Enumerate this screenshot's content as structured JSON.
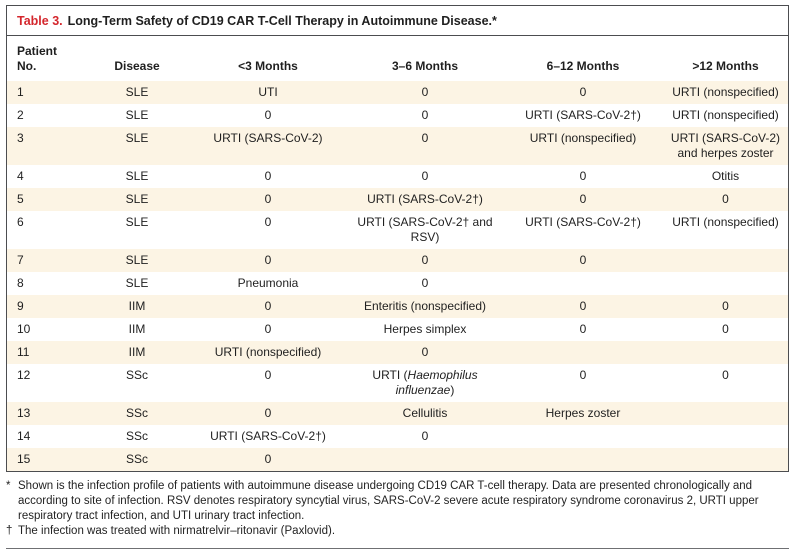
{
  "table": {
    "label": "Table 3.",
    "title": "Long-Term Safety of CD19 CAR T-Cell Therapy in Autoimmune Disease.*",
    "columns": [
      "Patient\nNo.",
      "Disease",
      "<3 Months",
      "3–6 Months",
      "6–12 Months",
      ">12 Months"
    ],
    "rows": [
      {
        "no": "1",
        "disease": "SLE",
        "m0_3": "UTI",
        "m3_6": "0",
        "m6_12": "0",
        "m12": "URTI (nonspecified)"
      },
      {
        "no": "2",
        "disease": "SLE",
        "m0_3": "0",
        "m3_6": "0",
        "m6_12": "URTI (SARS-CoV-2†)",
        "m12": "URTI (nonspecified)"
      },
      {
        "no": "3",
        "disease": "SLE",
        "m0_3": "URTI (SARS-CoV-2)",
        "m3_6": "0",
        "m6_12": "URTI (nonspecified)",
        "m12": "URTI (SARS-CoV-2) and herpes zoster"
      },
      {
        "no": "4",
        "disease": "SLE",
        "m0_3": "0",
        "m3_6": "0",
        "m6_12": "0",
        "m12": "Otitis"
      },
      {
        "no": "5",
        "disease": "SLE",
        "m0_3": "0",
        "m3_6": "URTI (SARS-CoV-2†)",
        "m6_12": "0",
        "m12": "0"
      },
      {
        "no": "6",
        "disease": "SLE",
        "m0_3": "0",
        "m3_6": "URTI (SARS-CoV-2† and RSV)",
        "m6_12": "URTI (SARS-CoV-2†)",
        "m12": "URTI (nonspecified)"
      },
      {
        "no": "7",
        "disease": "SLE",
        "m0_3": "0",
        "m3_6": "0",
        "m6_12": "0",
        "m12": ""
      },
      {
        "no": "8",
        "disease": "SLE",
        "m0_3": "Pneumonia",
        "m3_6": "0",
        "m6_12": "",
        "m12": ""
      },
      {
        "no": "9",
        "disease": "IIM",
        "m0_3": "0",
        "m3_6": "Enteritis (nonspecified)",
        "m6_12": "0",
        "m12": "0"
      },
      {
        "no": "10",
        "disease": "IIM",
        "m0_3": "0",
        "m3_6": "Herpes simplex",
        "m6_12": "0",
        "m12": "0"
      },
      {
        "no": "11",
        "disease": "IIM",
        "m0_3": "URTI (nonspecified)",
        "m3_6": "0",
        "m6_12": "",
        "m12": ""
      },
      {
        "no": "12",
        "disease": "SSc",
        "m0_3": "0",
        "m3_6_parts": {
          "prefix": "URTI (",
          "italic": "Haemophilus influenzae",
          "suffix": ")"
        },
        "m6_12": "0",
        "m12": "0"
      },
      {
        "no": "13",
        "disease": "SSc",
        "m0_3": "0",
        "m3_6": "Cellulitis",
        "m6_12": "Herpes zoster",
        "m12": ""
      },
      {
        "no": "14",
        "disease": "SSc",
        "m0_3": "URTI (SARS-CoV-2†)",
        "m3_6": "0",
        "m6_12": "",
        "m12": ""
      },
      {
        "no": "15",
        "disease": "SSc",
        "m0_3": "0",
        "m3_6": "",
        "m6_12": "",
        "m12": ""
      }
    ]
  },
  "footnotes": [
    {
      "marker": "*",
      "text": "Shown is the infection profile of patients with autoimmune disease undergoing CD19 CAR T-cell therapy. Data are presented chronologically and according to site of infection. RSV denotes respiratory syncytial virus, SARS-CoV-2 severe acute respiratory syndrome coronavirus 2, URTI upper respiratory tract infection, and UTI urinary tract infection."
    },
    {
      "marker": "†",
      "text": "The infection was treated with nirmatrelvir–ritonavir (Paxlovid)."
    }
  ],
  "colors": {
    "accent_red": "#d4262c",
    "row_stripe": "#fcf4e4",
    "border": "#4c4d50"
  }
}
